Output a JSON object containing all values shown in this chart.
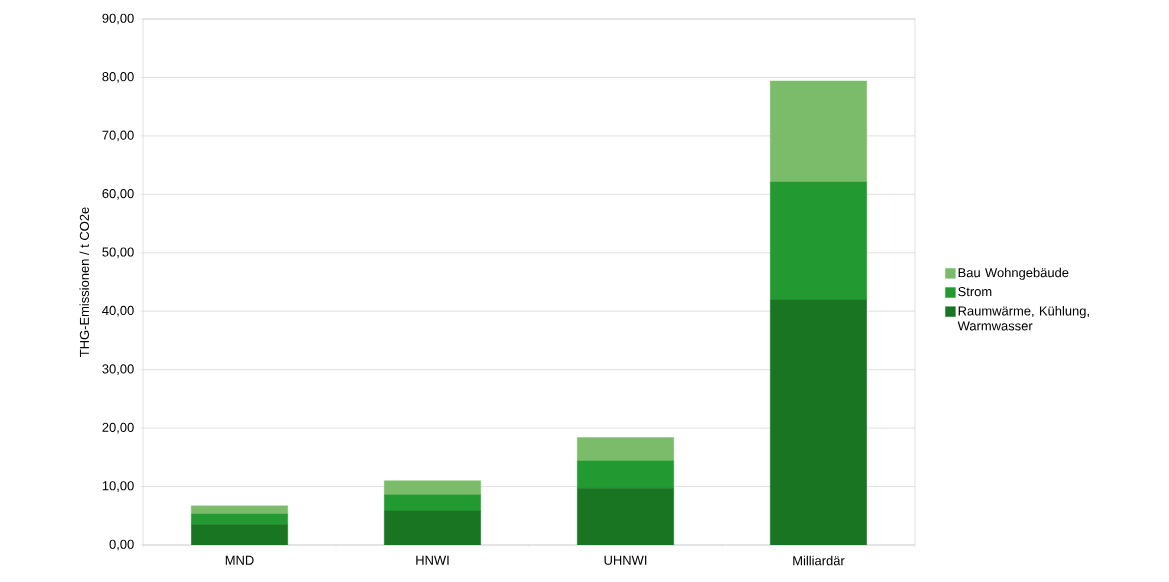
{
  "chart_data": {
    "type": "bar",
    "stacked": true,
    "ylabel": "THG-Emissionen / t CO2e",
    "categories": [
      "MND",
      "HNWI",
      "UHNWI",
      "Milliardär"
    ],
    "series": [
      {
        "name": "Raumwärme, Kühlung, Warmwasser",
        "color": "#1a7523",
        "values": [
          3.5,
          5.8,
          9.7,
          41.9
        ]
      },
      {
        "name": "Strom",
        "color": "#239a31",
        "values": [
          1.8,
          2.8,
          4.7,
          20.2
        ]
      },
      {
        "name": "Bau Wohngebäude",
        "color": "#7bbc6a",
        "values": [
          1.4,
          2.4,
          4.0,
          17.3
        ]
      }
    ],
    "ylim": [
      0,
      90
    ],
    "yticks": [
      {
        "value": 0,
        "label": "0,00"
      },
      {
        "value": 10,
        "label": "10,00"
      },
      {
        "value": 20,
        "label": "20,00"
      },
      {
        "value": 30,
        "label": "30,00"
      },
      {
        "value": 40,
        "label": "40,00"
      },
      {
        "value": 50,
        "label": "50,00"
      },
      {
        "value": 60,
        "label": "60,00"
      },
      {
        "value": 70,
        "label": "70,00"
      },
      {
        "value": 80,
        "label": "80,00"
      },
      {
        "value": 90,
        "label": "90,00"
      }
    ],
    "grid": "y",
    "legend": "right"
  }
}
